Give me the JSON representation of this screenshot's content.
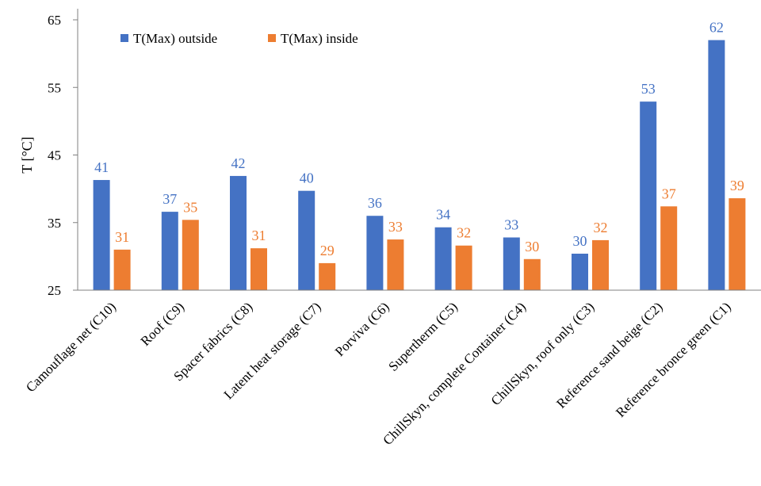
{
  "chart_data": {
    "type": "bar",
    "ylabel": "T [°C]",
    "ylim": [
      25,
      65
    ],
    "yticks": [
      "25",
      "35",
      "45",
      "55",
      "65"
    ],
    "categories": [
      "Camouflage net (C10)",
      "Roof (C9)",
      "Spacer fabrics (C8)",
      "Latent heat storage (C7)",
      "Porviva (C6)",
      "Supertherm (C5)",
      "ChillSkyn, complete Container (C4)",
      "ChillSkyn, roof only (C3)",
      "Reference sand beige (C2)",
      "Reference bronce green (C1)"
    ],
    "series": [
      {
        "name": "T(Max) outside",
        "color": "#4472C4",
        "values": [
          41.3,
          36.6,
          41.9,
          39.7,
          36.0,
          34.3,
          32.8,
          30.4,
          52.9,
          62.0
        ],
        "labels": [
          "41",
          "37",
          "42",
          "40",
          "36",
          "34",
          "33",
          "30",
          "53",
          "62"
        ]
      },
      {
        "name": "T(Max) inside",
        "color": "#ED7D31",
        "values": [
          31.0,
          35.4,
          31.2,
          29.0,
          32.5,
          31.6,
          29.6,
          32.4,
          37.4,
          38.6
        ],
        "labels": [
          "31",
          "35",
          "31",
          "29",
          "33",
          "32",
          "30",
          "32",
          "37",
          "39"
        ]
      }
    ],
    "grid": false,
    "legend_position": "top-left"
  }
}
